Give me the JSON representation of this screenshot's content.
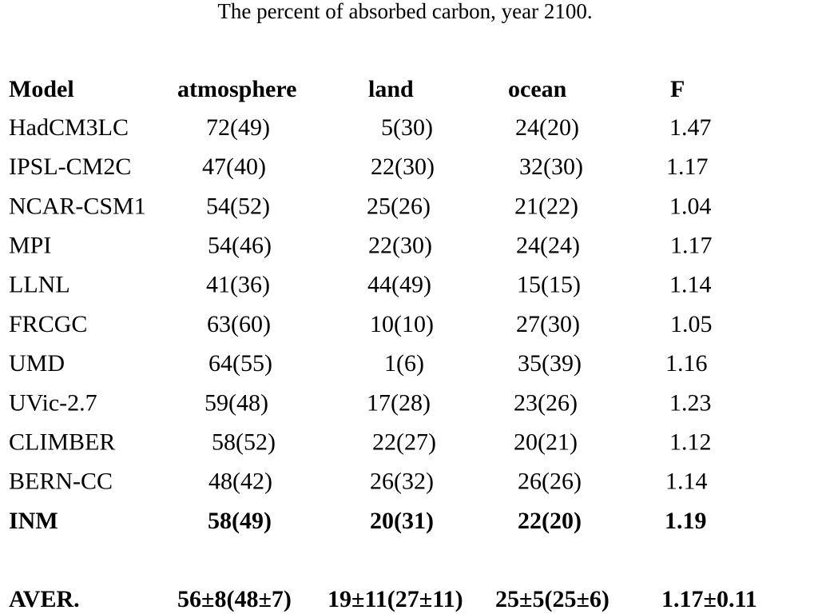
{
  "title": "The percent of absorbed carbon,  year 2100.",
  "table": {
    "header": [
      "Model",
      "atmosphere",
      "land",
      "ocean",
      "F"
    ],
    "rows": [
      [
        "HadCM3LC",
        "72(49)",
        "5(30)",
        "24(20)",
        "1.47"
      ],
      [
        "IPSL-CM2C",
        "47(40)",
        "22(30)",
        "32(30)",
        "1.17"
      ],
      [
        "NCAR-CSM1",
        "54(52)",
        "25(26)",
        "21(22)",
        "1.04"
      ],
      [
        "MPI",
        "54(46)",
        "22(30)",
        "24(24)",
        "1.17"
      ],
      [
        "LLNL",
        "41(36)",
        "44(49)",
        "15(15)",
        "1.14"
      ],
      [
        "FRCGC",
        "63(60)",
        "10(10)",
        "27(30)",
        "1.05"
      ],
      [
        "UMD",
        "64(55)",
        "1(6)",
        "35(39)",
        "1.16"
      ],
      [
        "UVic-2.7",
        "59(48)",
        "17(28)",
        "23(26)",
        "1.23"
      ],
      [
        "CLIMBER",
        "58(52)",
        "22(27)",
        "20(21)",
        "1.12"
      ],
      [
        "BERN-CC",
        "48(42)",
        "26(32)",
        "26(26)",
        "1.14"
      ],
      [
        "INM",
        "58(49)",
        "20(31)",
        "22(20)",
        "1.19"
      ]
    ],
    "average": [
      "AVER.",
      "56±8(48±7)",
      "19±11(27±11)",
      "25±5(25±6)",
      "1.17±0.11"
    ]
  }
}
